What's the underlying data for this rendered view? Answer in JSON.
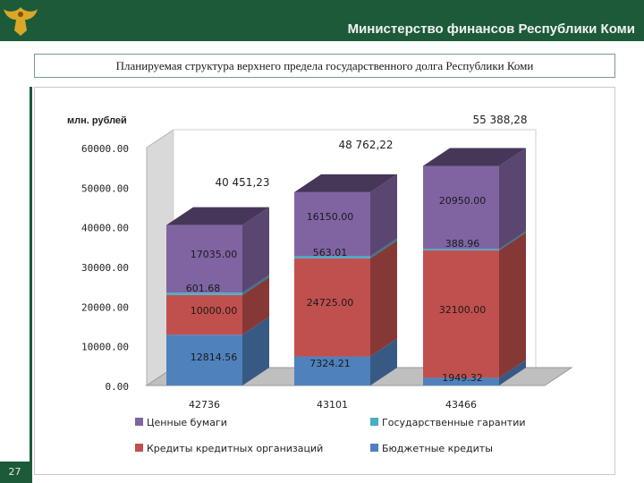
{
  "header": {
    "title": "Министерство финансов Республики Коми"
  },
  "subtitle": "Планируемая структура верхнего предела государственного долга Республики Коми",
  "page_number": "27",
  "colors": {
    "header_bg": "#1c5a3a",
    "securities": "#8064a2",
    "state_guarantees": "#4bacc6",
    "bank_credits": "#c0504d",
    "budget_credits": "#4f81bd"
  },
  "chart_data": {
    "type": "bar",
    "stacked": true,
    "ylabel": "млн. рублей",
    "ylim": [
      0,
      60000
    ],
    "yticks": [
      "0.00",
      "10000.00",
      "20000.00",
      "30000.00",
      "40000.00",
      "50000.00",
      "60000.00"
    ],
    "categories": [
      "42736",
      "43101",
      "43466"
    ],
    "series": [
      {
        "key": "budget_credits",
        "name": "Бюджетные кредиты",
        "values": [
          12814.56,
          7324.21,
          1949.32
        ],
        "labels": [
          "12814.56",
          "7324.21",
          "1949.32"
        ]
      },
      {
        "key": "bank_credits",
        "name": "Кредиты кредитных организаций",
        "values": [
          10000.0,
          24725.0,
          32100.0
        ],
        "labels": [
          "10000.00",
          "24725.00",
          "32100.00"
        ]
      },
      {
        "key": "state_guarantees",
        "name": "Государственные гарантии",
        "values": [
          601.68,
          563.01,
          388.96
        ],
        "labels": [
          "601.68",
          "563.01",
          "388.96"
        ]
      },
      {
        "key": "securities",
        "name": "Ценные бумаги",
        "values": [
          17035.0,
          16150.0,
          20950.0
        ],
        "labels": [
          "17035.00",
          "16150.00",
          "20950.00"
        ]
      }
    ],
    "totals": [
      "40 451,23",
      "48 762,22",
      "55 388,28"
    ],
    "legend_order": [
      "securities",
      "state_guarantees",
      "bank_credits",
      "budget_credits"
    ]
  }
}
